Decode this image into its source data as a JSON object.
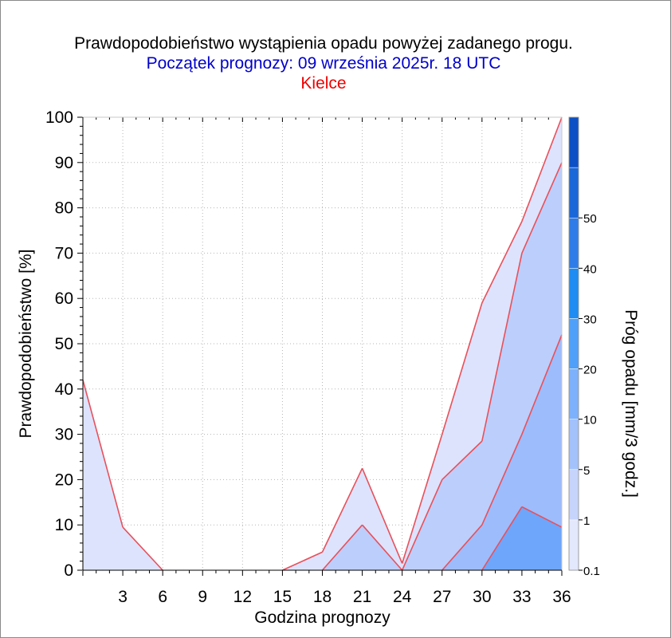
{
  "title": "Prawdopodobieństwo wystąpienia opadu powyżej zadanego progu.",
  "subtitle": "Początek prognozy: 09 września 2025r. 18 UTC",
  "location": "Kielce",
  "colors": {
    "title": "#000000",
    "subtitle": "#0000cc",
    "location": "#ee0000",
    "lines": "#e8505b"
  },
  "chart_data": {
    "type": "area",
    "xlabel": "Godzina prognozy",
    "ylabel": "Prawdopodobieństwo [%]",
    "x": [
      0,
      3,
      6,
      9,
      12,
      15,
      18,
      21,
      24,
      27,
      30,
      33,
      36
    ],
    "x_tick_labels": [
      "3",
      "6",
      "9",
      "12",
      "15",
      "18",
      "21",
      "24",
      "27",
      "30",
      "33",
      "36"
    ],
    "xlim": [
      0,
      36
    ],
    "ylim": [
      0,
      100
    ],
    "y_ticks": [
      0,
      10,
      20,
      30,
      40,
      50,
      60,
      70,
      80,
      90,
      100
    ],
    "grid": true,
    "series": [
      {
        "threshold": "0.1",
        "color": "#dde3fc",
        "values": [
          42,
          9.5,
          0,
          0,
          0,
          0,
          4,
          22.5,
          1.5,
          30,
          59,
          77,
          100
        ]
      },
      {
        "threshold": "1",
        "color": "#bccefb",
        "values": [
          0,
          0,
          0,
          0,
          0,
          0,
          0,
          10,
          0,
          20,
          28.5,
          70,
          90
        ]
      },
      {
        "threshold": "5",
        "color": "#9dbcfc",
        "values": [
          0,
          0,
          0,
          0,
          0,
          0,
          0,
          0,
          0,
          0,
          10,
          30,
          52
        ]
      },
      {
        "threshold": "10",
        "color": "#6ea6fb",
        "values": [
          0,
          0,
          0,
          0,
          0,
          0,
          0,
          0,
          0,
          0,
          0,
          14,
          9.5
        ]
      }
    ],
    "colorbar": {
      "label": "Próg opadu [mm/3 godz.]",
      "tick_labels": [
        "0.1",
        "1",
        "5",
        "10",
        "20",
        "30",
        "40",
        "50"
      ],
      "colors": [
        "#e3e8fd",
        "#c6d4fc",
        "#a3c1fb",
        "#7eb1fb",
        "#4fa0f9",
        "#1e8cf2",
        "#2f7ce8",
        "#1a67d8",
        "#0d4fc4"
      ]
    }
  }
}
